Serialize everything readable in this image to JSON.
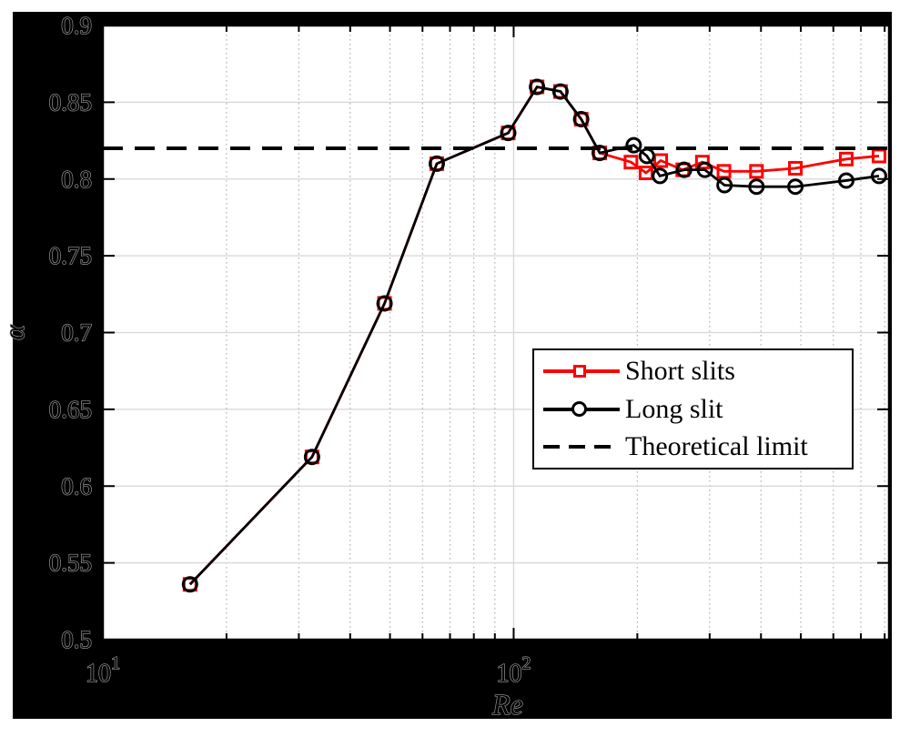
{
  "figure": {
    "outer_background": "#ffffff",
    "figure_background": "#000000",
    "plot_background": "#ffffff",
    "grid_major_color": "#d6d6d6",
    "grid_minor_color": "#b3b3b3",
    "axis_color": "#000000",
    "tick_label_outline_color": "#9e9e9e"
  },
  "chart_data": {
    "type": "line",
    "title": "",
    "xlabel": "Re",
    "ylabel": "α",
    "x_axis": {
      "scale": "log",
      "min": 10,
      "max": 820,
      "major_ticks": [
        {
          "value": 10,
          "base": "10",
          "exp": "1"
        },
        {
          "value": 100,
          "base": "10",
          "exp": "2"
        }
      ],
      "minor_ticks": [
        20,
        30,
        40,
        50,
        60,
        70,
        80,
        90,
        200,
        300,
        400,
        500,
        600,
        700,
        800
      ]
    },
    "y_axis": {
      "scale": "linear",
      "min": 0.5,
      "max": 0.9,
      "ticks": [
        {
          "value": 0.5,
          "label": "0.5"
        },
        {
          "value": 0.55,
          "label": "0.55"
        },
        {
          "value": 0.6,
          "label": "0.6"
        },
        {
          "value": 0.65,
          "label": "0.65"
        },
        {
          "value": 0.7,
          "label": "0.7"
        },
        {
          "value": 0.75,
          "label": "0.75"
        },
        {
          "value": 0.8,
          "label": "0.8"
        },
        {
          "value": 0.85,
          "label": "0.85"
        },
        {
          "value": 0.9,
          "label": "0.9"
        }
      ]
    },
    "grid": {
      "horizontal": "major",
      "vertical": "major-and-minor",
      "minor_style": "dotted"
    },
    "legend_position": "middle-right",
    "series": [
      {
        "name": "Short slits",
        "color": "#ff0000",
        "marker": "square",
        "x": [
          16.3,
          32.3,
          48.5,
          65,
          97,
          114,
          130,
          146,
          162,
          193,
          210,
          228,
          258,
          288,
          325,
          390,
          485,
          645,
          775
        ],
        "y": [
          0.536,
          0.619,
          0.719,
          0.81,
          0.83,
          0.86,
          0.857,
          0.839,
          0.817,
          0.811,
          0.804,
          0.812,
          0.806,
          0.811,
          0.805,
          0.805,
          0.807,
          0.813,
          0.815
        ]
      },
      {
        "name": "Long slit",
        "color": "#000000",
        "marker": "circle",
        "x": [
          16.3,
          32.3,
          48.5,
          65,
          97,
          114,
          130,
          146,
          162,
          196,
          211,
          227,
          260,
          292,
          326,
          390,
          485,
          645,
          775
        ],
        "y": [
          0.536,
          0.619,
          0.719,
          0.81,
          0.83,
          0.86,
          0.857,
          0.839,
          0.817,
          0.822,
          0.815,
          0.802,
          0.806,
          0.806,
          0.796,
          0.795,
          0.795,
          0.799,
          0.802
        ]
      }
    ],
    "reference_line": {
      "name": "Theoretical limit",
      "value": 0.82,
      "color": "#000000",
      "style": "dashed"
    }
  }
}
